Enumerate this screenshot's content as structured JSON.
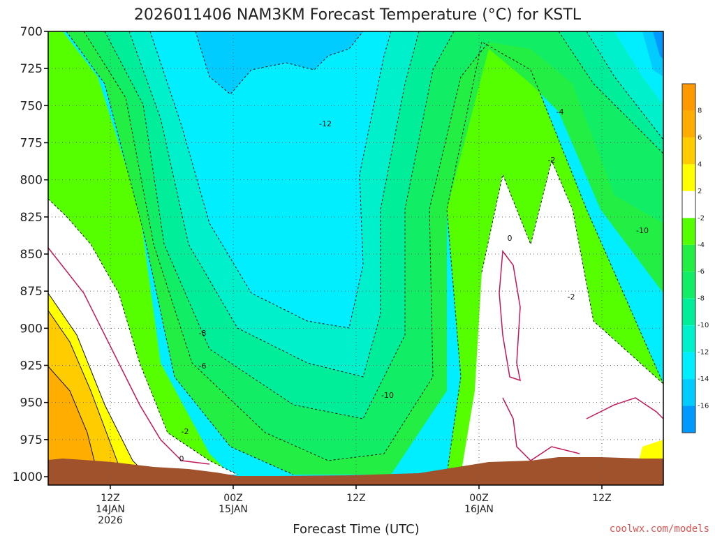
{
  "chart_data": {
    "type": "heatmap",
    "title": "2026011406 NAM3KM Forecast Temperature (°C) for KSTL",
    "xlabel": "Forecast Time (UTC)",
    "ylabel": "",
    "y_axis": {
      "ticks": [
        700,
        725,
        750,
        775,
        800,
        825,
        850,
        875,
        900,
        925,
        950,
        975,
        1000
      ],
      "reversed": true
    },
    "x_ticks": [
      {
        "label": "12Z",
        "label2": "14JAN",
        "label3": "2026"
      },
      {
        "label": "00Z",
        "label2": "15JAN",
        "label3": ""
      },
      {
        "label": "12Z",
        "label2": "",
        "label3": ""
      },
      {
        "label": "00Z",
        "label2": "16JAN",
        "label3": ""
      },
      {
        "label": "12Z",
        "label2": "",
        "label3": ""
      }
    ],
    "grid": true,
    "colorbar": {
      "bands": [
        {
          "range": [
            8,
            10
          ],
          "color": "#ff9900"
        },
        {
          "range": [
            6,
            8
          ],
          "color": "#ffae00"
        },
        {
          "range": [
            4,
            6
          ],
          "color": "#ffcc00"
        },
        {
          "range": [
            2,
            4
          ],
          "color": "#ffff00"
        },
        {
          "range": [
            -2,
            2
          ],
          "color": "#ffffff"
        },
        {
          "range": [
            -4,
            -2
          ],
          "color": "#55ff00"
        },
        {
          "range": [
            -6,
            -4
          ],
          "color": "#22ee44"
        },
        {
          "range": [
            -8,
            -6
          ],
          "color": "#11ee66"
        },
        {
          "range": [
            -10,
            -8
          ],
          "color": "#00ee99"
        },
        {
          "range": [
            -12,
            -10
          ],
          "color": "#00f0cc"
        },
        {
          "range": [
            -14,
            -12
          ],
          "color": "#00eeff"
        },
        {
          "range": [
            -16,
            -14
          ],
          "color": "#00ccff"
        },
        {
          "range": [
            -18,
            -16
          ],
          "color": "#0099ff"
        }
      ],
      "labels": [
        "8",
        "6",
        "4",
        "2",
        "-2",
        "-4",
        "-6",
        "-8",
        "-10",
        "-12",
        "-14",
        "-16"
      ]
    },
    "contour_labels": [
      "-12",
      "-4",
      "-2",
      "0",
      "-10",
      "-2",
      "-8",
      "-6",
      "-10",
      "-2",
      "0"
    ],
    "ground_color": "#a0522d"
  },
  "credit": "coolwx.com/models"
}
